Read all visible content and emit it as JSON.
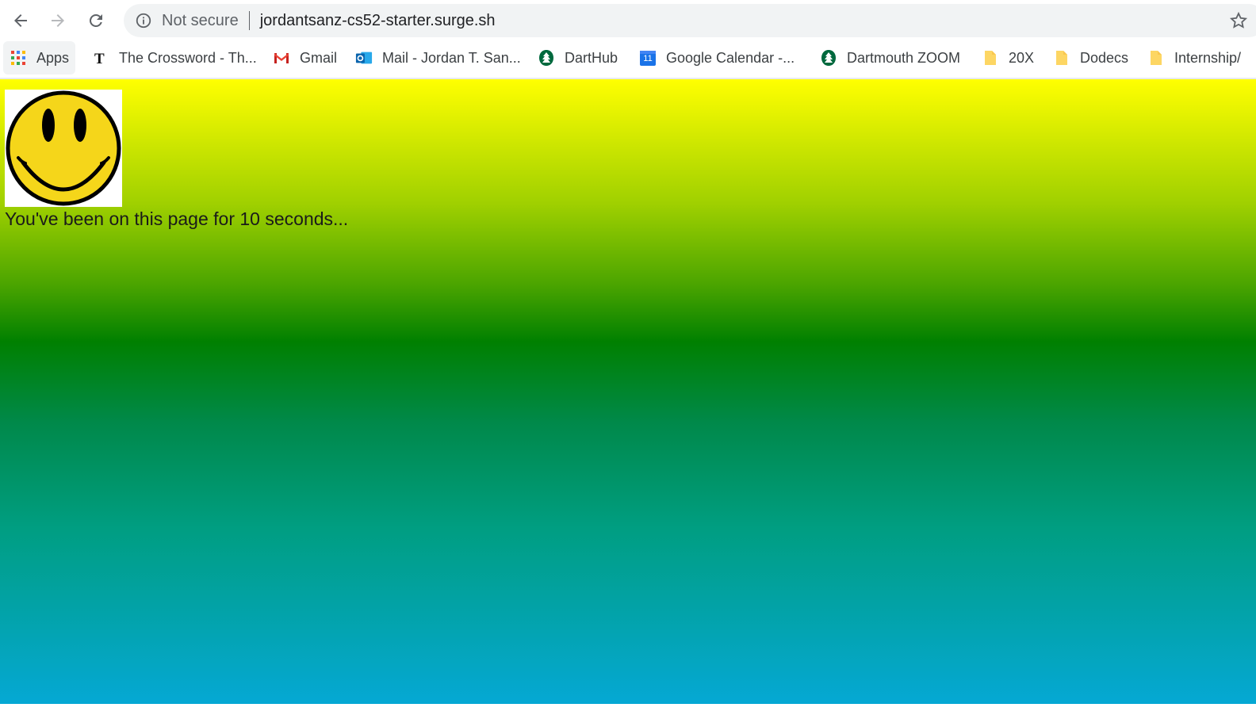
{
  "browser": {
    "security_label": "Not secure",
    "url": "jordantsanz-cs52-starter.surge.sh",
    "bookmarks": [
      {
        "label": "Apps",
        "icon": "apps-grid-icon"
      },
      {
        "label": "The Crossword - Th...",
        "icon": "nyt-icon"
      },
      {
        "label": "Gmail",
        "icon": "gmail-icon"
      },
      {
        "label": "Mail - Jordan T. San...",
        "icon": "outlook-icon"
      },
      {
        "label": "DartHub",
        "icon": "dartmouth-pine-icon"
      },
      {
        "label": "Google Calendar -...",
        "icon": "calendar-icon",
        "calendar_day": "11"
      },
      {
        "label": "Dartmouth ZOOM",
        "icon": "dartmouth-pine-icon"
      },
      {
        "label": "20X",
        "icon": "folder-icon"
      },
      {
        "label": "Dodecs",
        "icon": "folder-icon"
      },
      {
        "label": "Internship/",
        "icon": "folder-icon"
      }
    ]
  },
  "page": {
    "message": "You've been on this page for 10 seconds...",
    "image": "smiley-face-icon"
  },
  "colors": {
    "gradient_top": "#ffff00",
    "gradient_mid": "#008000",
    "gradient_bottom": "#05a8d4",
    "smiley_yellow": "#f5d61a"
  }
}
